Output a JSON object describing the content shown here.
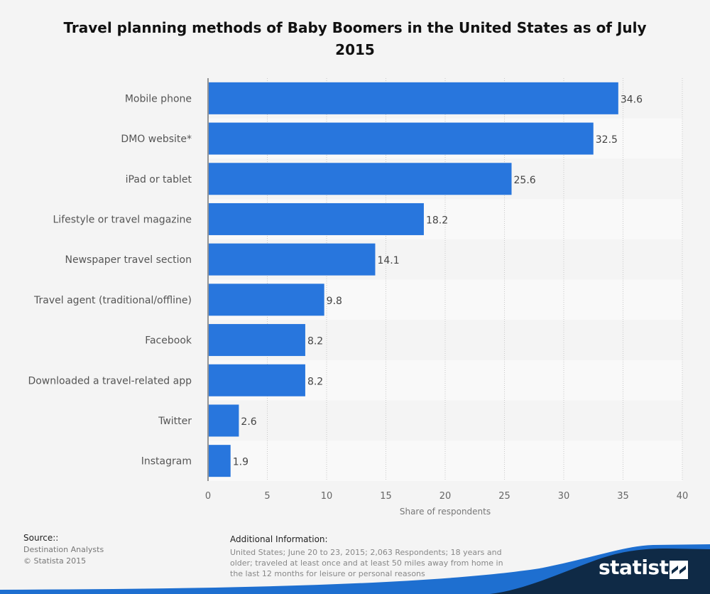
{
  "title": "Travel planning methods of Baby Boomers in the United States as of July 2015",
  "chart_data": {
    "type": "bar",
    "orientation": "horizontal",
    "categories": [
      "Mobile phone",
      "DMO website*",
      "iPad or tablet",
      "Lifestyle or travel magazine",
      "Newspaper travel section",
      "Travel agent (traditional/offline)",
      "Facebook",
      "Downloaded a travel-related app",
      "Twitter",
      "Instagram"
    ],
    "values": [
      34.6,
      32.5,
      25.6,
      18.2,
      14.1,
      9.8,
      8.2,
      8.2,
      2.6,
      1.9
    ],
    "value_labels": [
      "34.6",
      "32.5",
      "25.6",
      "18.2",
      "14.1",
      "9.8",
      "8.2",
      "8.2",
      "2.6",
      "1.9"
    ],
    "xlabel": "Share of respondents",
    "ylabel": "",
    "xlim": [
      0,
      40
    ],
    "xticks": [
      "0",
      "5",
      "10",
      "15",
      "20",
      "25",
      "30",
      "35",
      "40"
    ],
    "grid": "vertical dotted",
    "bar_color": "#2876dd"
  },
  "footer": {
    "source_heading": "Source::",
    "source_lines": [
      "Destination Analysts",
      "© Statista 2015"
    ],
    "info_heading": "Additional Information:",
    "info_text": "United States; June 20 to 23, 2015; 2,063 Respondents; 18 years and older; traveled at least once and at least 50 miles away from home in the last 12 months for leisure or personal reasons"
  },
  "brand": {
    "logo_text": "statista",
    "logo_icon": "statista-logo-icon",
    "wave_colors": [
      "#1e6fd0",
      "#0f2a46"
    ]
  }
}
